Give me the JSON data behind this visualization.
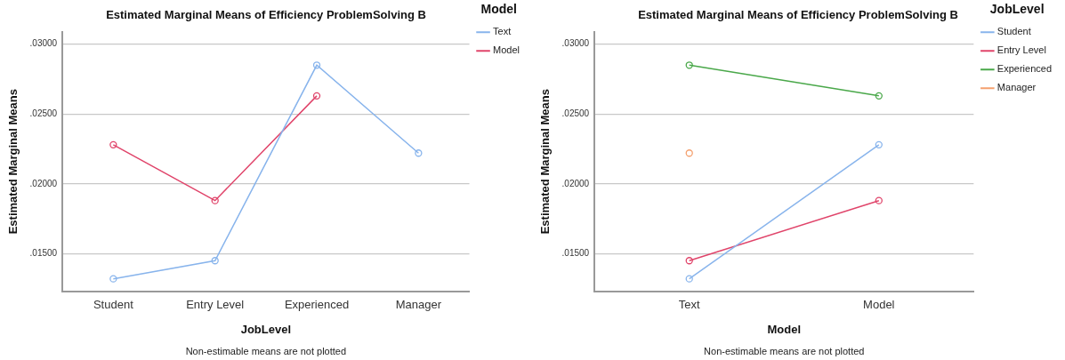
{
  "chart_data": [
    {
      "type": "line",
      "title": "Estimated Marginal Means of Efficiency ProblemSolving B",
      "xlabel": "JobLevel",
      "ylabel": "Estimated Marginal Means",
      "legend_title": "Model",
      "categories": [
        "Student",
        "Entry Level",
        "Experienced",
        "Manager"
      ],
      "series": [
        {
          "name": "Text",
          "color": "#88b4ec",
          "values": [
            0.0132,
            0.0145,
            0.0285,
            0.0222
          ]
        },
        {
          "name": "Model",
          "color": "#e0446a",
          "values": [
            0.0228,
            0.0188,
            0.0263,
            null
          ]
        }
      ],
      "ylim": [
        0.0123,
        0.0309
      ],
      "yticks": [
        {
          "value": 0.015,
          "label": ".01500"
        },
        {
          "value": 0.02,
          "label": ".02000"
        },
        {
          "value": 0.025,
          "label": ".02500"
        },
        {
          "value": 0.03,
          "label": ".03000"
        }
      ],
      "grid": "y",
      "legend": "top right",
      "marker": "circle",
      "annotations": [
        "Non-estimable means are not plotted"
      ]
    },
    {
      "type": "line",
      "title": "Estimated Marginal Means of Efficiency ProblemSolving B",
      "xlabel": "Model",
      "ylabel": "Estimated Marginal Means",
      "legend_title": "JobLevel",
      "categories": [
        "Text",
        "Model"
      ],
      "series": [
        {
          "name": "Student",
          "color": "#88b4ec",
          "values": [
            0.0132,
            0.0228
          ]
        },
        {
          "name": "Entry Level",
          "color": "#e0446a",
          "values": [
            0.0145,
            0.0188
          ]
        },
        {
          "name": "Experienced",
          "color": "#4aa84a",
          "values": [
            0.0285,
            0.0263
          ]
        },
        {
          "name": "Manager",
          "color": "#f4a06e",
          "values": [
            0.0222,
            null
          ]
        }
      ],
      "ylim": [
        0.0123,
        0.0309
      ],
      "yticks": [
        {
          "value": 0.015,
          "label": ".01500"
        },
        {
          "value": 0.02,
          "label": ".02000"
        },
        {
          "value": 0.025,
          "label": ".02500"
        },
        {
          "value": 0.03,
          "label": ".03000"
        }
      ],
      "grid": "y",
      "legend": "top right",
      "marker": "circle",
      "annotations": [
        "Non-estimable means are not plotted"
      ]
    }
  ]
}
